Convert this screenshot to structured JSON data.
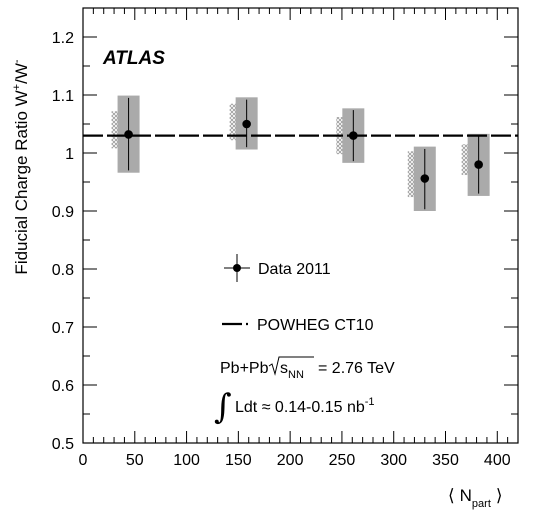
{
  "chart_data": {
    "type": "scatter",
    "ylabel": {
      "main": "Fiducial Charge Ratio W",
      "sup1": "+",
      "mid": "/W",
      "sup2": "-"
    },
    "xlabel": {
      "left": "⟨",
      "main": "N",
      "sub": "part",
      "right": "⟩"
    },
    "xlim": [
      0,
      420
    ],
    "ylim": [
      0.5,
      1.25
    ],
    "xticks": [
      0,
      50,
      100,
      150,
      200,
      250,
      300,
      350,
      400
    ],
    "yticks": [
      0.5,
      0.6,
      0.7,
      0.8,
      0.9,
      1.0,
      1.1,
      1.2
    ],
    "ytick_labels": [
      "0.5",
      "0.6",
      "0.7",
      "0.8",
      "0.9",
      "1",
      "1.1",
      "1.2"
    ],
    "xtick_labels": [
      "0",
      "50",
      "100",
      "150",
      "200",
      "250",
      "300",
      "350",
      "400"
    ],
    "grid": false,
    "experiment_label": "ATLAS",
    "series": [
      {
        "name": "Data 2011",
        "style": "points with error bars",
        "points": [
          {
            "x": 44,
            "y": 1.032,
            "stat_low": 0.97,
            "stat_high": 1.095,
            "sys_low": 0.966,
            "sys_high": 1.099,
            "sys2_low": 1.008,
            "sys2_high": 1.072
          },
          {
            "x": 158,
            "y": 1.05,
            "stat_low": 1.01,
            "stat_high": 1.092,
            "sys_low": 1.006,
            "sys_high": 1.096,
            "sys2_low": 1.022,
            "sys2_high": 1.085
          },
          {
            "x": 261,
            "y": 1.03,
            "stat_low": 0.986,
            "stat_high": 1.074,
            "sys_low": 0.983,
            "sys_high": 1.077,
            "sys2_low": 0.998,
            "sys2_high": 1.062
          },
          {
            "x": 330,
            "y": 0.956,
            "stat_low": 0.903,
            "stat_high": 1.007,
            "sys_low": 0.9,
            "sys_high": 1.011,
            "sys2_low": 0.924,
            "sys2_high": 1.003
          },
          {
            "x": 382,
            "y": 0.98,
            "stat_low": 0.93,
            "stat_high": 1.031,
            "sys_low": 0.926,
            "sys_high": 1.033,
            "sys2_low": 0.962,
            "sys2_high": 1.015
          }
        ]
      },
      {
        "name": "POWHEG CT10",
        "style": "dashed line",
        "y": 1.03
      }
    ],
    "annotations": {
      "system_prefix": "Pb+Pb",
      "sqrt_s": "s",
      "sqrt_sub": "NN",
      "energy": "= 2.76 TeV",
      "lumi_prefix": "Ldt ≈ 0.14-0.15 nb",
      "lumi_sup": "-1",
      "integral": "∫"
    },
    "colors": {
      "sys_box": "#aaaaaa",
      "hatch": "#999999",
      "marker": "#000000"
    }
  }
}
